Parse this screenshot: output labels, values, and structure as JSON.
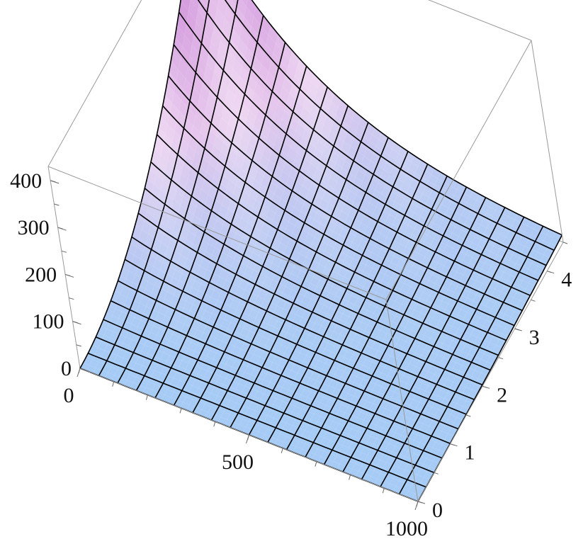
{
  "chart_data": {
    "type": "surface3d",
    "title": "",
    "xlabel": "",
    "ylabel": "",
    "zlabel": "",
    "x_range": [
      0,
      1000
    ],
    "y_range": [
      0,
      4.5
    ],
    "z_range": [
      0,
      430
    ],
    "x_ticks": [
      {
        "value": 0,
        "label": "0"
      },
      {
        "value": 500,
        "label": "500"
      },
      {
        "value": 1000,
        "label": "1000"
      }
    ],
    "y_ticks": [
      {
        "value": 0,
        "label": "0"
      },
      {
        "value": 1,
        "label": "1"
      },
      {
        "value": 2,
        "label": "2"
      },
      {
        "value": 3,
        "label": "3"
      },
      {
        "value": 4,
        "label": "4"
      }
    ],
    "z_ticks": [
      {
        "value": 0,
        "label": "0"
      },
      {
        "value": 100,
        "label": "100"
      },
      {
        "value": 200,
        "label": "200"
      },
      {
        "value": 300,
        "label": "300"
      },
      {
        "value": 400,
        "label": "400"
      }
    ],
    "surface": {
      "function": "z = 430 * (y/4.5)^2 * exp(-x/300)",
      "peak_z": 430,
      "decay_x": 300,
      "mesh_lines": 18
    },
    "colors": {
      "low": "#a6cbf5",
      "mid": "#e6c6ec",
      "high": "#c87bd4",
      "mesh": "#000000",
      "box": "#9a9a9a"
    },
    "box": true,
    "grid": false,
    "legend": "none"
  }
}
